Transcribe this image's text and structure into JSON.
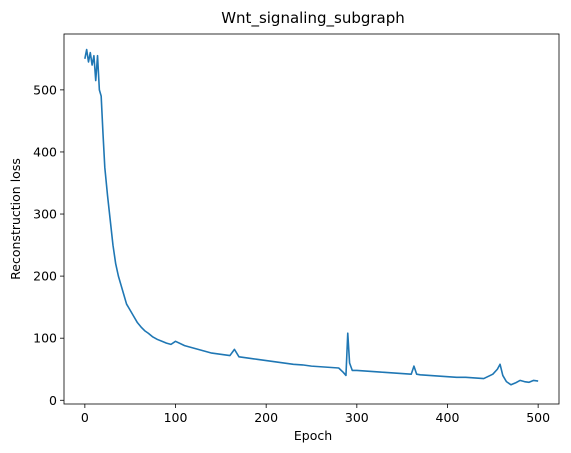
{
  "chart_data": {
    "type": "line",
    "title": "Wnt_signaling_subgraph",
    "xlabel": "Epoch",
    "ylabel": "Reconstruction loss",
    "xlim": [
      -23,
      523
    ],
    "ylim": [
      -6,
      590
    ],
    "xticks": [
      0,
      100,
      200,
      300,
      400,
      500
    ],
    "yticks": [
      0,
      100,
      200,
      300,
      400,
      500
    ],
    "grid": false,
    "legend": "none",
    "series": [
      {
        "color": "#1f77b4",
        "x": [
          0,
          2,
          4,
          6,
          8,
          10,
          12,
          14,
          16,
          18,
          20,
          22,
          25,
          28,
          31,
          34,
          37,
          40,
          43,
          46,
          50,
          54,
          58,
          62,
          66,
          70,
          75,
          80,
          85,
          90,
          95,
          100,
          110,
          120,
          130,
          140,
          150,
          160,
          165,
          170,
          180,
          190,
          200,
          210,
          220,
          230,
          240,
          250,
          260,
          270,
          280,
          285,
          288,
          290,
          292,
          295,
          300,
          310,
          320,
          330,
          340,
          350,
          360,
          363,
          366,
          370,
          380,
          390,
          400,
          410,
          420,
          430,
          440,
          450,
          455,
          458,
          461,
          465,
          470,
          475,
          480,
          485,
          490,
          495,
          500
        ],
        "y": [
          550,
          565,
          545,
          560,
          540,
          555,
          515,
          555,
          500,
          490,
          430,
          375,
          330,
          290,
          250,
          220,
          200,
          185,
          170,
          155,
          145,
          135,
          125,
          118,
          112,
          108,
          102,
          98,
          95,
          92,
          90,
          95,
          88,
          84,
          80,
          76,
          74,
          72,
          82,
          70,
          68,
          66,
          64,
          62,
          60,
          58,
          57,
          55,
          54,
          53,
          52,
          45,
          40,
          108,
          60,
          48,
          48,
          47,
          46,
          45,
          44,
          43,
          42,
          55,
          42,
          41,
          40,
          39,
          38,
          37,
          37,
          36,
          35,
          42,
          50,
          58,
          40,
          30,
          25,
          28,
          32,
          30,
          29,
          32,
          31
        ]
      }
    ]
  }
}
